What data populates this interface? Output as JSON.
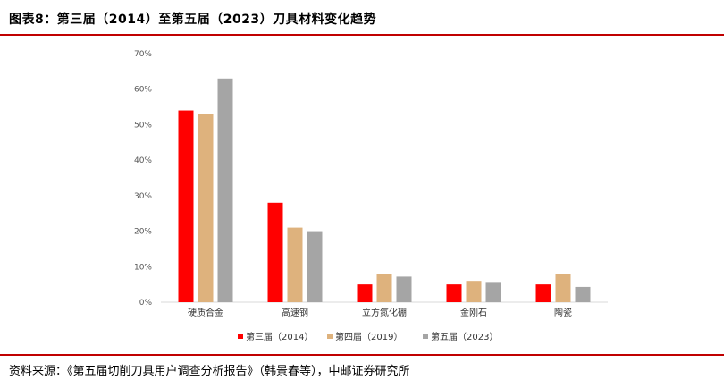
{
  "header": {
    "title": "图表8：第三届（2014）至第五届（2023）刀具材料变化趋势"
  },
  "footer": {
    "source": "资料来源：《第五届切削刀具用户调查分析报告》（韩景春等），中邮证券研究所"
  },
  "chart_data": {
    "type": "bar",
    "categories": [
      "硬质合金",
      "高速钢",
      "立方氮化硼",
      "金刚石",
      "陶瓷"
    ],
    "series": [
      {
        "name": "第三届（2014）",
        "color": "#ff0000",
        "values": [
          54,
          28,
          5,
          5,
          5
        ]
      },
      {
        "name": "第四届（2019）",
        "color": "#deb27d",
        "values": [
          53,
          21,
          8,
          6,
          8
        ]
      },
      {
        "name": "第五届（2023）",
        "color": "#a5a5a5",
        "values": [
          63,
          20,
          7.2,
          5.7,
          4.3
        ]
      }
    ],
    "ylim": [
      0,
      70
    ],
    "yticks": [
      "0%",
      "10%",
      "20%",
      "30%",
      "40%",
      "50%",
      "60%",
      "70%"
    ],
    "grid": false,
    "legend_position": "bottom"
  }
}
